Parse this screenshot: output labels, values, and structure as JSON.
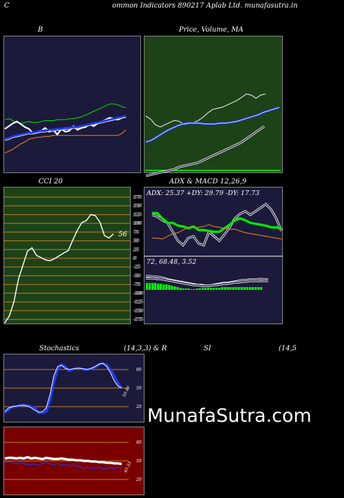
{
  "header": {
    "title": "ommon  Indicators 890217 Aplab Ltd. munafasutra.in",
    "left_letter": "C"
  },
  "watermark": "MunafaSutra.com",
  "colors": {
    "panel_blue": "#1b1a3a",
    "panel_green": "#1e4218",
    "panel_red": "#7a0000",
    "stoch_orange": "#c87e20",
    "adx_green": "#00e800",
    "adx_orange": "#e07818",
    "macd_green": "#00ff00",
    "line_blue": "#1e3cff",
    "line_white": "#ffffff"
  },
  "chart_data": [
    {
      "type": "line",
      "title": "B",
      "ylim": [
        0,
        100
      ],
      "series": [
        {
          "color": "#00d000",
          "values": [
            48,
            49,
            47,
            45,
            44,
            45,
            46,
            45,
            45,
            46,
            47,
            47,
            47,
            48,
            48,
            48,
            49,
            49,
            50,
            51,
            53,
            55,
            57,
            59,
            61,
            63,
            65,
            65,
            64,
            62,
            61
          ]
        },
        {
          "color": "#ffffff",
          "values": [
            38,
            41,
            44,
            46,
            43,
            40,
            38,
            33,
            34,
            36,
            39,
            35,
            37,
            32,
            38,
            35,
            36,
            41,
            37,
            39,
            40,
            43,
            41,
            44,
            46,
            48,
            50,
            49,
            48,
            50,
            51
          ]
        },
        {
          "color": "#1e3cff",
          "values": [
            27,
            28,
            30,
            31,
            32,
            33,
            34,
            34,
            35,
            36,
            36,
            37,
            37,
            38,
            38,
            39,
            39,
            40,
            40,
            41,
            42,
            43,
            44,
            45,
            46,
            47,
            48,
            49,
            50,
            51,
            52
          ]
        },
        {
          "color": "#e07818",
          "values": [
            12,
            14,
            16,
            19,
            22,
            24,
            27,
            28,
            29,
            29,
            30,
            30,
            31,
            31,
            31,
            31,
            31,
            31,
            31,
            31,
            31,
            31,
            31,
            31,
            31,
            31,
            31,
            31,
            31,
            33,
            37
          ]
        }
      ]
    },
    {
      "type": "line",
      "title": "Price,  Volume,  MA",
      "series": [
        {
          "color": "#ffffff",
          "values": [
            52,
            49,
            44,
            42,
            44,
            46,
            48,
            47,
            44,
            45,
            46,
            48,
            51,
            55,
            58,
            59,
            60,
            62,
            64,
            66,
            69,
            72,
            71,
            68,
            71,
            72
          ]
        },
        {
          "color": "#1e3cff",
          "values": [
            21,
            23,
            27,
            31,
            35,
            38,
            41,
            43,
            44,
            44,
            44,
            43,
            43,
            43,
            44,
            44,
            45,
            46,
            48,
            50,
            52,
            54,
            57,
            59,
            61,
            63
          ]
        },
        {
          "color": "#ffffff",
          "values": [
            10,
            11,
            12,
            13,
            14,
            15,
            16,
            18,
            19,
            20,
            21,
            22,
            24,
            26,
            28,
            30,
            32,
            34,
            36,
            38,
            40,
            43,
            46,
            49,
            52,
            55
          ]
        }
      ]
    },
    {
      "type": "line",
      "title": "CCI 20",
      "value_label": "56",
      "yticks": [
        175,
        150,
        125,
        100,
        75,
        50,
        25,
        0,
        -25,
        -50,
        -75,
        -100,
        -125,
        -150,
        -175
      ],
      "ylim": [
        -185,
        185
      ],
      "series": [
        {
          "color": "#ffffff",
          "values": [
            -185,
            -165,
            -125,
            -60,
            -20,
            20,
            30,
            8,
            2,
            -5,
            -7,
            -1,
            7,
            15,
            22,
            52,
            80,
            102,
            108,
            125,
            122,
            103,
            65,
            58,
            70
          ]
        }
      ]
    },
    {
      "type": "line",
      "title": "ADX  & MACD 12,26,9",
      "readout": "ADX: 25.37  +DY: 29.79  -DY: 17.73",
      "yticks": [
        175,
        150,
        125,
        100,
        75,
        50,
        25,
        0,
        -25,
        -50,
        -75,
        -100,
        -125,
        -150,
        -175
      ],
      "series": [
        {
          "color": "#00e800",
          "values": [
            46,
            46,
            40,
            35,
            35,
            32,
            31,
            29,
            31,
            27,
            27,
            26,
            25,
            25,
            29,
            33,
            38,
            40,
            38,
            35,
            34,
            33,
            32,
            30,
            30,
            29
          ]
        },
        {
          "color": "#ffffff",
          "values": [
            44,
            42,
            38,
            35,
            25,
            15,
            10,
            18,
            20,
            12,
            10,
            25,
            20,
            15,
            22,
            30,
            40,
            45,
            48,
            44,
            48,
            52,
            56,
            50,
            40,
            26
          ]
        },
        {
          "color": "#e07818",
          "values": [
            18,
            18,
            17,
            20,
            23,
            24,
            27,
            30,
            30,
            30,
            31,
            33,
            31,
            30,
            29,
            28,
            28,
            26,
            24,
            23,
            22,
            21,
            20,
            19,
            18,
            17
          ]
        }
      ]
    },
    {
      "type": "bar",
      "title": "MACD 12,26,9",
      "readout": "72,  68.48,  3.52",
      "histogram": [
        10,
        10,
        10,
        10,
        9,
        9,
        8,
        8,
        7,
        6,
        5,
        4,
        3,
        2,
        2,
        2,
        1,
        1,
        2,
        2,
        3,
        3,
        3,
        3,
        3,
        3,
        3,
        4,
        4,
        4,
        4,
        4,
        4,
        4,
        4,
        4,
        4,
        4,
        4,
        4,
        4,
        4
      ],
      "series": [
        {
          "color": "#ffffff",
          "values": [
            16,
            16,
            15,
            15,
            14,
            13,
            11,
            10,
            9,
            8,
            7,
            6,
            5,
            4,
            3,
            3,
            2,
            2,
            3,
            4,
            5,
            6,
            6,
            7,
            8,
            9,
            10,
            10,
            11,
            11,
            11,
            12,
            11,
            11
          ]
        },
        {
          "color": "#ffffff",
          "values": [
            13,
            13,
            13,
            12,
            12,
            11,
            10,
            9,
            8,
            7,
            6,
            5,
            4,
            3,
            3,
            2,
            2,
            2,
            3,
            3,
            4,
            5,
            5,
            6,
            7,
            7,
            8,
            8,
            9,
            9,
            9,
            9,
            9,
            9
          ]
        }
      ]
    },
    {
      "type": "line",
      "title": "Stochastics",
      "subtitle": "(14,3,3) & R",
      "value_label": "50.46",
      "yticks": [
        80,
        50,
        20
      ],
      "ylim": [
        0,
        100
      ],
      "series": [
        {
          "color": "#1e3cff",
          "values": [
            10,
            15,
            20,
            20,
            22,
            23,
            22,
            20,
            18,
            10,
            10,
            12,
            30,
            60,
            80,
            88,
            85,
            78,
            80,
            82,
            82,
            80,
            80,
            82,
            84,
            88,
            90,
            88,
            80,
            70,
            58,
            50
          ]
        },
        {
          "color": "#ffffff",
          "values": [
            12,
            18,
            20,
            21,
            22,
            22,
            21,
            18,
            14,
            11,
            12,
            18,
            40,
            70,
            85,
            87,
            82,
            80,
            81,
            82,
            82,
            81,
            80,
            82,
            85,
            89,
            90,
            85,
            75,
            62,
            53,
            50
          ]
        }
      ]
    },
    {
      "type": "line",
      "title": "",
      "value_label": "45.33",
      "yticks": [
        80,
        50,
        20
      ],
      "ylim": [
        0,
        100
      ],
      "series": [
        {
          "color": "#ffffff",
          "values": [
            54,
            55,
            55,
            54,
            55,
            54,
            56,
            54,
            55,
            54,
            53,
            55,
            54,
            53,
            53,
            54,
            53,
            52,
            52,
            51,
            51,
            50,
            50,
            49,
            49,
            48,
            48,
            47,
            47,
            46,
            46,
            45
          ]
        },
        {
          "color": "#1e3cff",
          "values": [
            48,
            49,
            47,
            45,
            48,
            46,
            44,
            44,
            45,
            43,
            46,
            48,
            45,
            44,
            46,
            43,
            44,
            42,
            44,
            42,
            40,
            38,
            40,
            38,
            38,
            40,
            37,
            38,
            39,
            38,
            40,
            38
          ]
        }
      ]
    },
    {
      "type": "line",
      "title": "SI",
      "subtitle": "(14,5",
      "series": []
    }
  ]
}
